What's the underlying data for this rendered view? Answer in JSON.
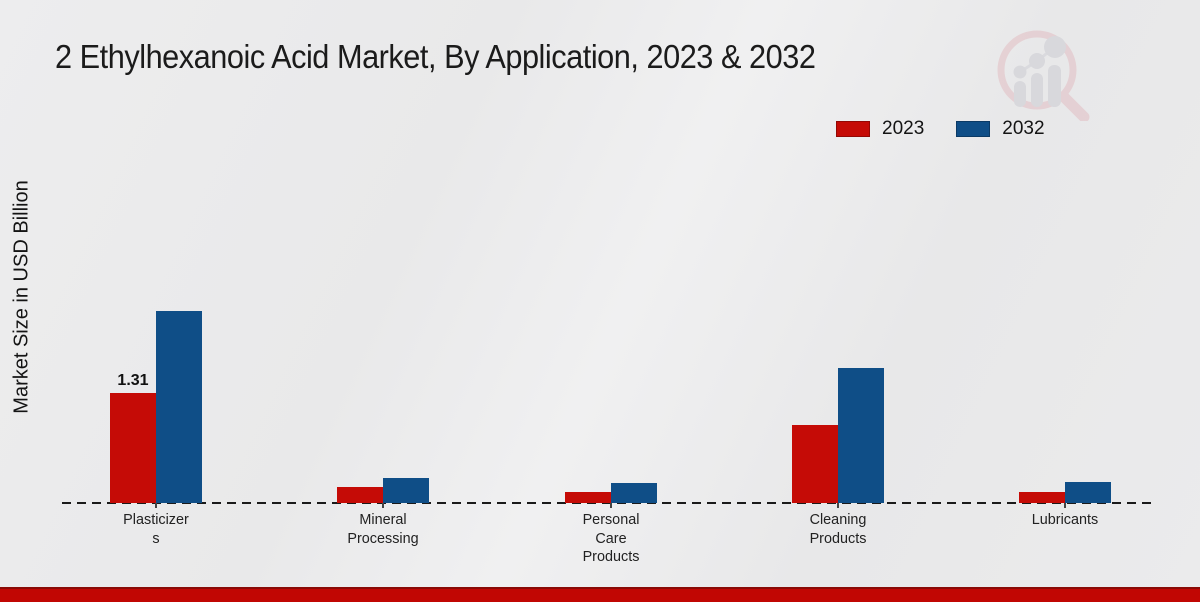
{
  "header": {
    "title": "2 Ethylhexanoic Acid Market, By Application, 2023 & 2032"
  },
  "branding": {
    "logo_icon": "magnifier-bar-chart-watermark",
    "logo_ring_color": "#e2bec3",
    "logo_bar_color": "#cbcbd2"
  },
  "chart_data": {
    "type": "bar",
    "title": "2 Ethylhexanoic Acid Market, By Application, 2023 & 2032",
    "xlabel": "",
    "ylabel": "Market Size in USD Billion",
    "unit": "USD Billion",
    "categories": [
      "Plasticizers",
      "Mineral Processing",
      "Personal Care Products",
      "Cleaning Products",
      "Lubricants"
    ],
    "category_label_lines": [
      [
        "Plasticizer",
        "s"
      ],
      [
        "Mineral",
        "Processing"
      ],
      [
        "Personal",
        "Care",
        "Products"
      ],
      [
        "Cleaning",
        "Products"
      ],
      [
        "Lubricants"
      ]
    ],
    "series": [
      {
        "name": "2023",
        "color": "#c50b06",
        "values": [
          1.31,
          0.19,
          0.13,
          0.93,
          0.13
        ]
      },
      {
        "name": "2032",
        "color": "#0f4e87",
        "values": [
          2.29,
          0.3,
          0.24,
          1.61,
          0.25
        ]
      }
    ],
    "data_labels": [
      {
        "category_index": 0,
        "series_index": 0,
        "text": "1.31"
      }
    ],
    "axis": {
      "baseline_style": "dashed",
      "y_gridlines": false,
      "y_axis_visible": false
    },
    "legend": {
      "position": "top-right",
      "entries": [
        "2023",
        "2032"
      ]
    }
  },
  "footer": {
    "accent_band_color": "#c10603"
  }
}
